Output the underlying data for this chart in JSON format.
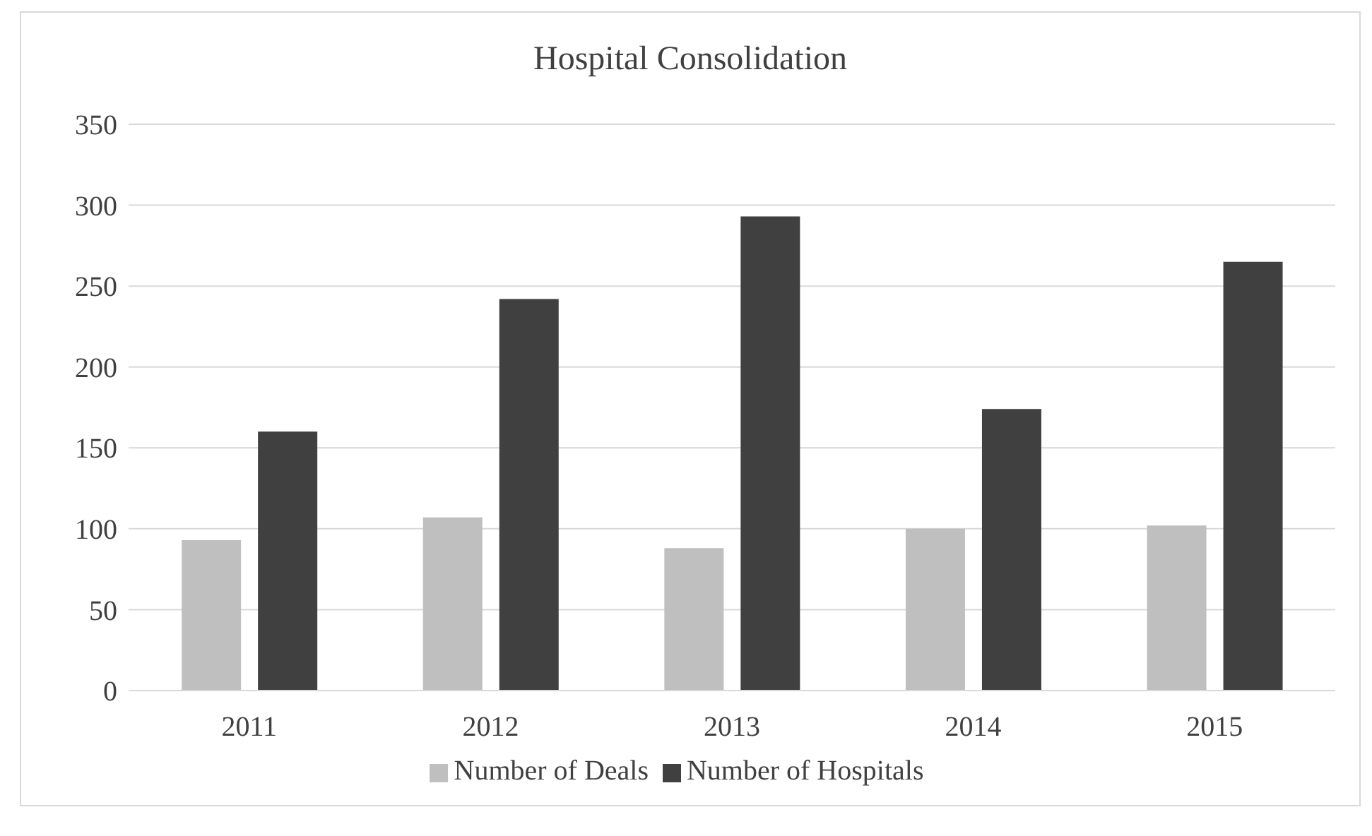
{
  "chart_data": {
    "type": "bar",
    "title": "Hospital Consolidation",
    "categories": [
      "2011",
      "2012",
      "2013",
      "2014",
      "2015"
    ],
    "series": [
      {
        "name": "Number of Deals",
        "color": "#bfbfbf",
        "values": [
          93,
          107,
          88,
          100,
          102
        ]
      },
      {
        "name": "Number of Hospitals",
        "color": "#404040",
        "values": [
          160,
          242,
          293,
          174,
          265
        ]
      }
    ],
    "ylim": [
      0,
      350
    ],
    "yticks": [
      0,
      50,
      100,
      150,
      200,
      250,
      300,
      350
    ],
    "grid": "y",
    "legend": "bottom"
  }
}
